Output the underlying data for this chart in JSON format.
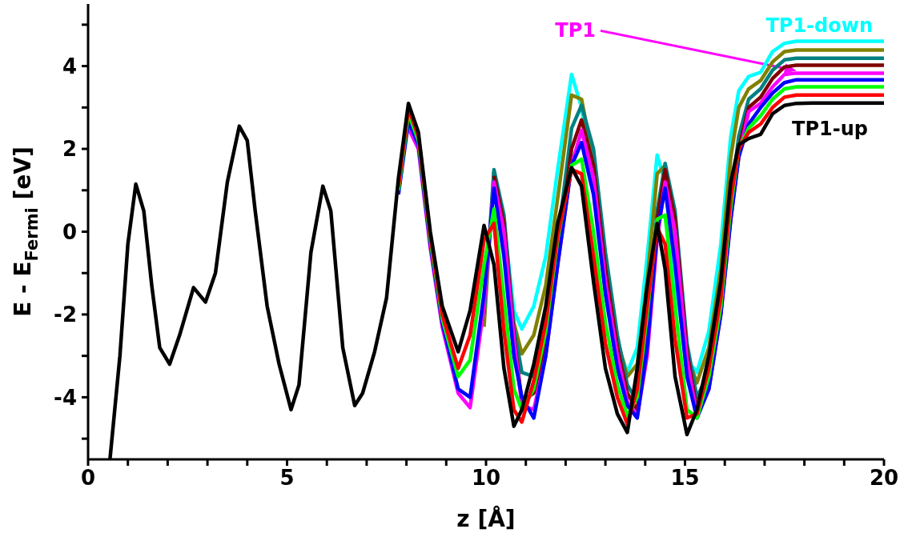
{
  "chart_data": {
    "type": "line",
    "xlabel": "z [Å]",
    "ylabel": "E - E$_{Fermi}$ [eV]",
    "xlim": [
      0,
      20
    ],
    "ylim": [
      -5.5,
      5.5
    ],
    "xticks": [
      0,
      {
        "value": 1,
        "label": null
      },
      {
        "value": 2,
        "label": null
      },
      {
        "value": 3,
        "label": null
      },
      {
        "value": 4,
        "label": null
      },
      5,
      {
        "value": 6,
        "label": null
      },
      {
        "value": 7,
        "label": null
      },
      {
        "value": 8,
        "label": null
      },
      {
        "value": 9,
        "label": null
      },
      10,
      {
        "value": 11,
        "label": null
      },
      {
        "value": 12,
        "label": null
      },
      {
        "value": 13,
        "label": null
      },
      {
        "value": 14,
        "label": null
      },
      15,
      {
        "value": 16,
        "label": null
      },
      {
        "value": 17,
        "label": null
      },
      {
        "value": 18,
        "label": null
      },
      {
        "value": 19,
        "label": null
      },
      20
    ],
    "yticks": [
      {
        "value": -5,
        "label": null
      },
      -4,
      {
        "value": -3,
        "label": null
      },
      -2,
      {
        "value": -1,
        "label": null
      },
      0,
      {
        "value": 1,
        "label": null
      },
      2,
      {
        "value": 3,
        "label": null
      },
      4,
      {
        "value": 5,
        "label": null
      }
    ],
    "x": [
      0.55,
      0.8,
      1.0,
      1.2,
      1.4,
      1.6,
      1.8,
      2.05,
      2.3,
      2.65,
      2.95,
      3.2,
      3.5,
      3.8,
      4.0,
      4.2,
      4.5,
      4.8,
      5.1,
      5.3,
      5.6,
      5.9,
      6.1,
      6.4,
      6.7,
      6.9,
      7.2,
      7.5,
      7.8,
      8.05,
      8.3,
      8.6,
      8.9,
      9.3,
      9.6,
      9.95,
      10.2,
      10.45,
      10.7,
      10.9,
      11.2,
      11.5,
      11.8,
      12.15,
      12.4,
      12.7,
      13.0,
      13.3,
      13.55,
      13.8,
      14.05,
      14.3,
      14.5,
      14.75,
      15.05,
      15.3,
      15.6,
      15.9,
      16.15,
      16.35,
      16.6,
      16.9,
      17.2,
      17.5,
      17.8,
      18.2,
      20
    ],
    "series": [
      {
        "name": "TP1-down",
        "color": "#00ffff",
        "values": [
          null,
          null,
          null,
          null,
          null,
          null,
          null,
          null,
          null,
          null,
          null,
          null,
          null,
          null,
          null,
          null,
          null,
          null,
          null,
          null,
          null,
          null,
          null,
          null,
          null,
          null,
          null,
          null,
          null,
          null,
          null,
          null,
          null,
          null,
          null,
          null,
          null,
          0.2,
          -1.9,
          -2.35,
          -1.8,
          -0.6,
          1.5,
          3.8,
          3.0,
          1.2,
          -1.2,
          -2.7,
          -3.4,
          -2.8,
          -0.6,
          1.85,
          1.2,
          -1.2,
          -3.1,
          -3.4,
          -2.4,
          -0.3,
          2.3,
          3.4,
          3.75,
          3.85,
          4.35,
          4.55,
          4.6,
          4.6,
          4.6
        ]
      },
      {
        "color": "#808000",
        "values": [
          null,
          null,
          null,
          null,
          null,
          null,
          null,
          null,
          null,
          null,
          null,
          null,
          null,
          null,
          null,
          null,
          null,
          null,
          null,
          null,
          null,
          null,
          null,
          null,
          null,
          null,
          null,
          null,
          null,
          null,
          null,
          null,
          null,
          null,
          null,
          -2.3,
          1.45,
          -0.2,
          -2.2,
          -2.95,
          -2.5,
          -1.3,
          0.8,
          3.3,
          3.2,
          1.7,
          -0.8,
          -2.6,
          -3.5,
          -3.2,
          -1.2,
          1.4,
          1.6,
          -0.4,
          -3.0,
          -3.65,
          -2.8,
          -0.9,
          1.8,
          3.0,
          3.45,
          3.65,
          4.1,
          4.35,
          4.39,
          4.39,
          4.39
        ]
      },
      {
        "color": "#008080",
        "values": [
          null,
          null,
          null,
          null,
          null,
          null,
          null,
          null,
          null,
          null,
          null,
          null,
          null,
          null,
          null,
          null,
          null,
          null,
          null,
          null,
          null,
          null,
          null,
          null,
          null,
          null,
          null,
          null,
          null,
          null,
          null,
          null,
          null,
          null,
          null,
          -2.0,
          1.5,
          0.4,
          -2.3,
          -3.4,
          -3.5,
          -2.5,
          -0.2,
          2.5,
          3.05,
          2.0,
          -0.5,
          -2.5,
          -3.7,
          -4.1,
          -2.5,
          0.5,
          1.65,
          0.5,
          -2.7,
          -4.0,
          -3.4,
          -1.7,
          0.8,
          2.3,
          3.2,
          3.45,
          3.9,
          4.15,
          4.19,
          4.19,
          4.19
        ]
      },
      {
        "color": "#800000",
        "values": [
          null,
          null,
          null,
          null,
          null,
          null,
          null,
          null,
          null,
          null,
          null,
          null,
          null,
          null,
          null,
          null,
          null,
          null,
          null,
          null,
          null,
          null,
          null,
          null,
          null,
          null,
          null,
          null,
          null,
          null,
          null,
          null,
          null,
          null,
          null,
          null,
          1.35,
          0.2,
          -2.5,
          -4.1,
          -3.9,
          -2.8,
          -0.5,
          2.0,
          2.7,
          1.6,
          -0.9,
          -2.8,
          -3.9,
          -4.3,
          -2.8,
          0.3,
          1.5,
          0.3,
          -2.9,
          -4.3,
          -3.6,
          -1.9,
          0.5,
          2.0,
          3.0,
          3.25,
          3.7,
          3.98,
          4.02,
          4.02,
          4.02
        ]
      },
      {
        "name": "TP1",
        "color": "#ff00ff",
        "values": [
          null,
          null,
          null,
          null,
          null,
          null,
          null,
          null,
          null,
          null,
          null,
          null,
          null,
          null,
          null,
          null,
          null,
          null,
          null,
          null,
          null,
          null,
          null,
          null,
          null,
          null,
          null,
          null,
          null,
          2.5,
          2.0,
          -0.4,
          -2.3,
          -3.9,
          -4.25,
          -1.8,
          1.2,
          0.0,
          -2.6,
          -4.2,
          -4.3,
          -3.0,
          -0.8,
          1.6,
          2.45,
          1.3,
          -1.2,
          -3.0,
          -4.1,
          -4.45,
          -3.0,
          -0.2,
          1.2,
          0.0,
          -3.1,
          -4.45,
          -3.8,
          -2.0,
          0.3,
          1.8,
          2.9,
          3.1,
          3.5,
          3.8,
          3.83,
          3.83,
          3.83
        ]
      },
      {
        "color": "#0000ff",
        "values": [
          null,
          null,
          null,
          null,
          null,
          null,
          null,
          null,
          null,
          null,
          null,
          null,
          null,
          null,
          null,
          null,
          null,
          null,
          null,
          null,
          null,
          null,
          null,
          null,
          null,
          null,
          null,
          null,
          0.9,
          2.67,
          2.1,
          -0.3,
          -2.2,
          -3.8,
          -4.0,
          -1.5,
          1.05,
          -0.6,
          -3.0,
          -4.0,
          -4.5,
          -3.0,
          -0.8,
          1.6,
          2.15,
          0.9,
          -1.5,
          -3.3,
          -4.2,
          -4.5,
          -2.8,
          0.0,
          1.05,
          -0.8,
          -3.5,
          -4.5,
          -3.8,
          -2.0,
          0.3,
          1.8,
          2.6,
          3.0,
          3.35,
          3.6,
          3.67,
          3.67,
          3.67
        ]
      },
      {
        "color": "#00ff00",
        "values": [
          null,
          null,
          null,
          null,
          null,
          null,
          null,
          null,
          null,
          null,
          null,
          null,
          null,
          null,
          null,
          null,
          null,
          null,
          null,
          null,
          null,
          null,
          null,
          null,
          null,
          null,
          null,
          null,
          1.0,
          2.86,
          2.2,
          -0.2,
          -2.1,
          -3.5,
          -3.1,
          -0.8,
          0.55,
          -1.6,
          -3.8,
          -4.3,
          -3.8,
          -2.4,
          -0.2,
          1.6,
          1.75,
          0.0,
          -2.2,
          -3.7,
          -4.45,
          -4.0,
          -2.0,
          0.3,
          0.4,
          -1.8,
          -4.3,
          -4.5,
          -3.5,
          -1.8,
          0.6,
          2.0,
          2.5,
          2.8,
          3.2,
          3.45,
          3.5,
          3.5,
          3.5
        ]
      },
      {
        "color": "#ff0000",
        "values": [
          null,
          null,
          null,
          null,
          null,
          null,
          null,
          null,
          null,
          null,
          null,
          null,
          null,
          null,
          null,
          null,
          null,
          null,
          null,
          null,
          null,
          null,
          null,
          null,
          null,
          null,
          null,
          null,
          1.1,
          2.98,
          2.3,
          -0.1,
          -2.0,
          -3.3,
          -2.5,
          -0.2,
          0.2,
          -2.4,
          -4.3,
          -4.6,
          -3.6,
          -2.2,
          -0.1,
          1.5,
          1.4,
          -0.6,
          -2.7,
          -4.0,
          -4.65,
          -3.8,
          -1.8,
          0.1,
          -0.3,
          -2.6,
          -4.5,
          -4.4,
          -3.3,
          -1.6,
          0.8,
          2.0,
          2.4,
          2.6,
          3.0,
          3.25,
          3.3,
          3.3,
          3.3
        ]
      },
      {
        "name": "TP1-up",
        "color": "#000000",
        "values": [
          -5.5,
          -3.0,
          -0.3,
          1.15,
          0.5,
          -1.3,
          -2.8,
          -3.2,
          -2.5,
          -1.35,
          -1.7,
          -1.0,
          1.2,
          2.55,
          2.2,
          0.5,
          -1.8,
          -3.2,
          -4.3,
          -3.7,
          -0.5,
          1.1,
          0.5,
          -2.8,
          -4.2,
          -3.9,
          -2.9,
          -1.6,
          1.3,
          3.1,
          2.4,
          0.0,
          -1.8,
          -2.9,
          -1.9,
          0.15,
          -0.8,
          -3.3,
          -4.7,
          -4.3,
          -3.2,
          -1.8,
          0.2,
          1.55,
          1.1,
          -1.2,
          -3.3,
          -4.4,
          -4.85,
          -3.3,
          -1.3,
          0.2,
          -0.9,
          -3.5,
          -4.9,
          -4.3,
          -3.0,
          -1.2,
          1.2,
          2.1,
          2.25,
          2.35,
          2.85,
          3.05,
          3.1,
          3.11,
          3.11
        ]
      }
    ]
  }
}
